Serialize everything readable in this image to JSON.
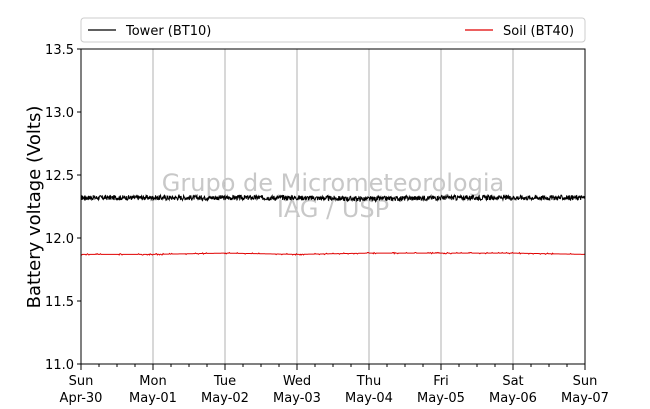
{
  "chart_data": {
    "type": "line",
    "ylabel": "Battery voltage (Volts)",
    "xlabel": "",
    "ylim": [
      11.0,
      13.5
    ],
    "yticks": [
      11.0,
      11.5,
      12.0,
      12.5,
      13.0,
      13.5
    ],
    "ytick_labels": [
      "11.0",
      "11.5",
      "12.0",
      "12.5",
      "13.0",
      "13.5"
    ],
    "xlim": [
      "2023-04-30",
      "2023-05-07"
    ],
    "xticks": [
      {
        "date": "2023-04-30",
        "day": "Sun",
        "date_label": "Apr-30"
      },
      {
        "date": "2023-05-01",
        "day": "Mon",
        "date_label": "May-01"
      },
      {
        "date": "2023-05-02",
        "day": "Tue",
        "date_label": "May-02"
      },
      {
        "date": "2023-05-03",
        "day": "Wed",
        "date_label": "May-03"
      },
      {
        "date": "2023-05-04",
        "day": "Thu",
        "date_label": "May-04"
      },
      {
        "date": "2023-05-05",
        "day": "Fri",
        "date_label": "May-05"
      },
      {
        "date": "2023-05-06",
        "day": "Sat",
        "date_label": "May-06"
      },
      {
        "date": "2023-05-07",
        "day": "Sun",
        "date_label": "May-07"
      }
    ],
    "grid": "vertical",
    "legend_position": "top",
    "series": [
      {
        "name": "Tower (BT10)",
        "color": "#000000",
        "x": [
          "2023-04-30",
          "2023-05-01",
          "2023-05-02",
          "2023-05-03",
          "2023-05-04",
          "2023-05-05",
          "2023-05-06",
          "2023-05-07"
        ],
        "values": [
          12.32,
          12.32,
          12.32,
          12.32,
          12.31,
          12.32,
          12.32,
          12.32
        ],
        "noise_amplitude": 0.02
      },
      {
        "name": "Soil (BT40)",
        "color": "#e00000",
        "x": [
          "2023-04-30",
          "2023-05-01",
          "2023-05-02",
          "2023-05-03",
          "2023-05-04",
          "2023-05-05",
          "2023-05-06",
          "2023-05-07"
        ],
        "values": [
          11.87,
          11.87,
          11.88,
          11.87,
          11.88,
          11.88,
          11.88,
          11.87
        ],
        "noise_amplitude": 0.005
      }
    ],
    "watermark": [
      "Grupo de Micrometeorologia",
      "IAG / USP"
    ]
  }
}
